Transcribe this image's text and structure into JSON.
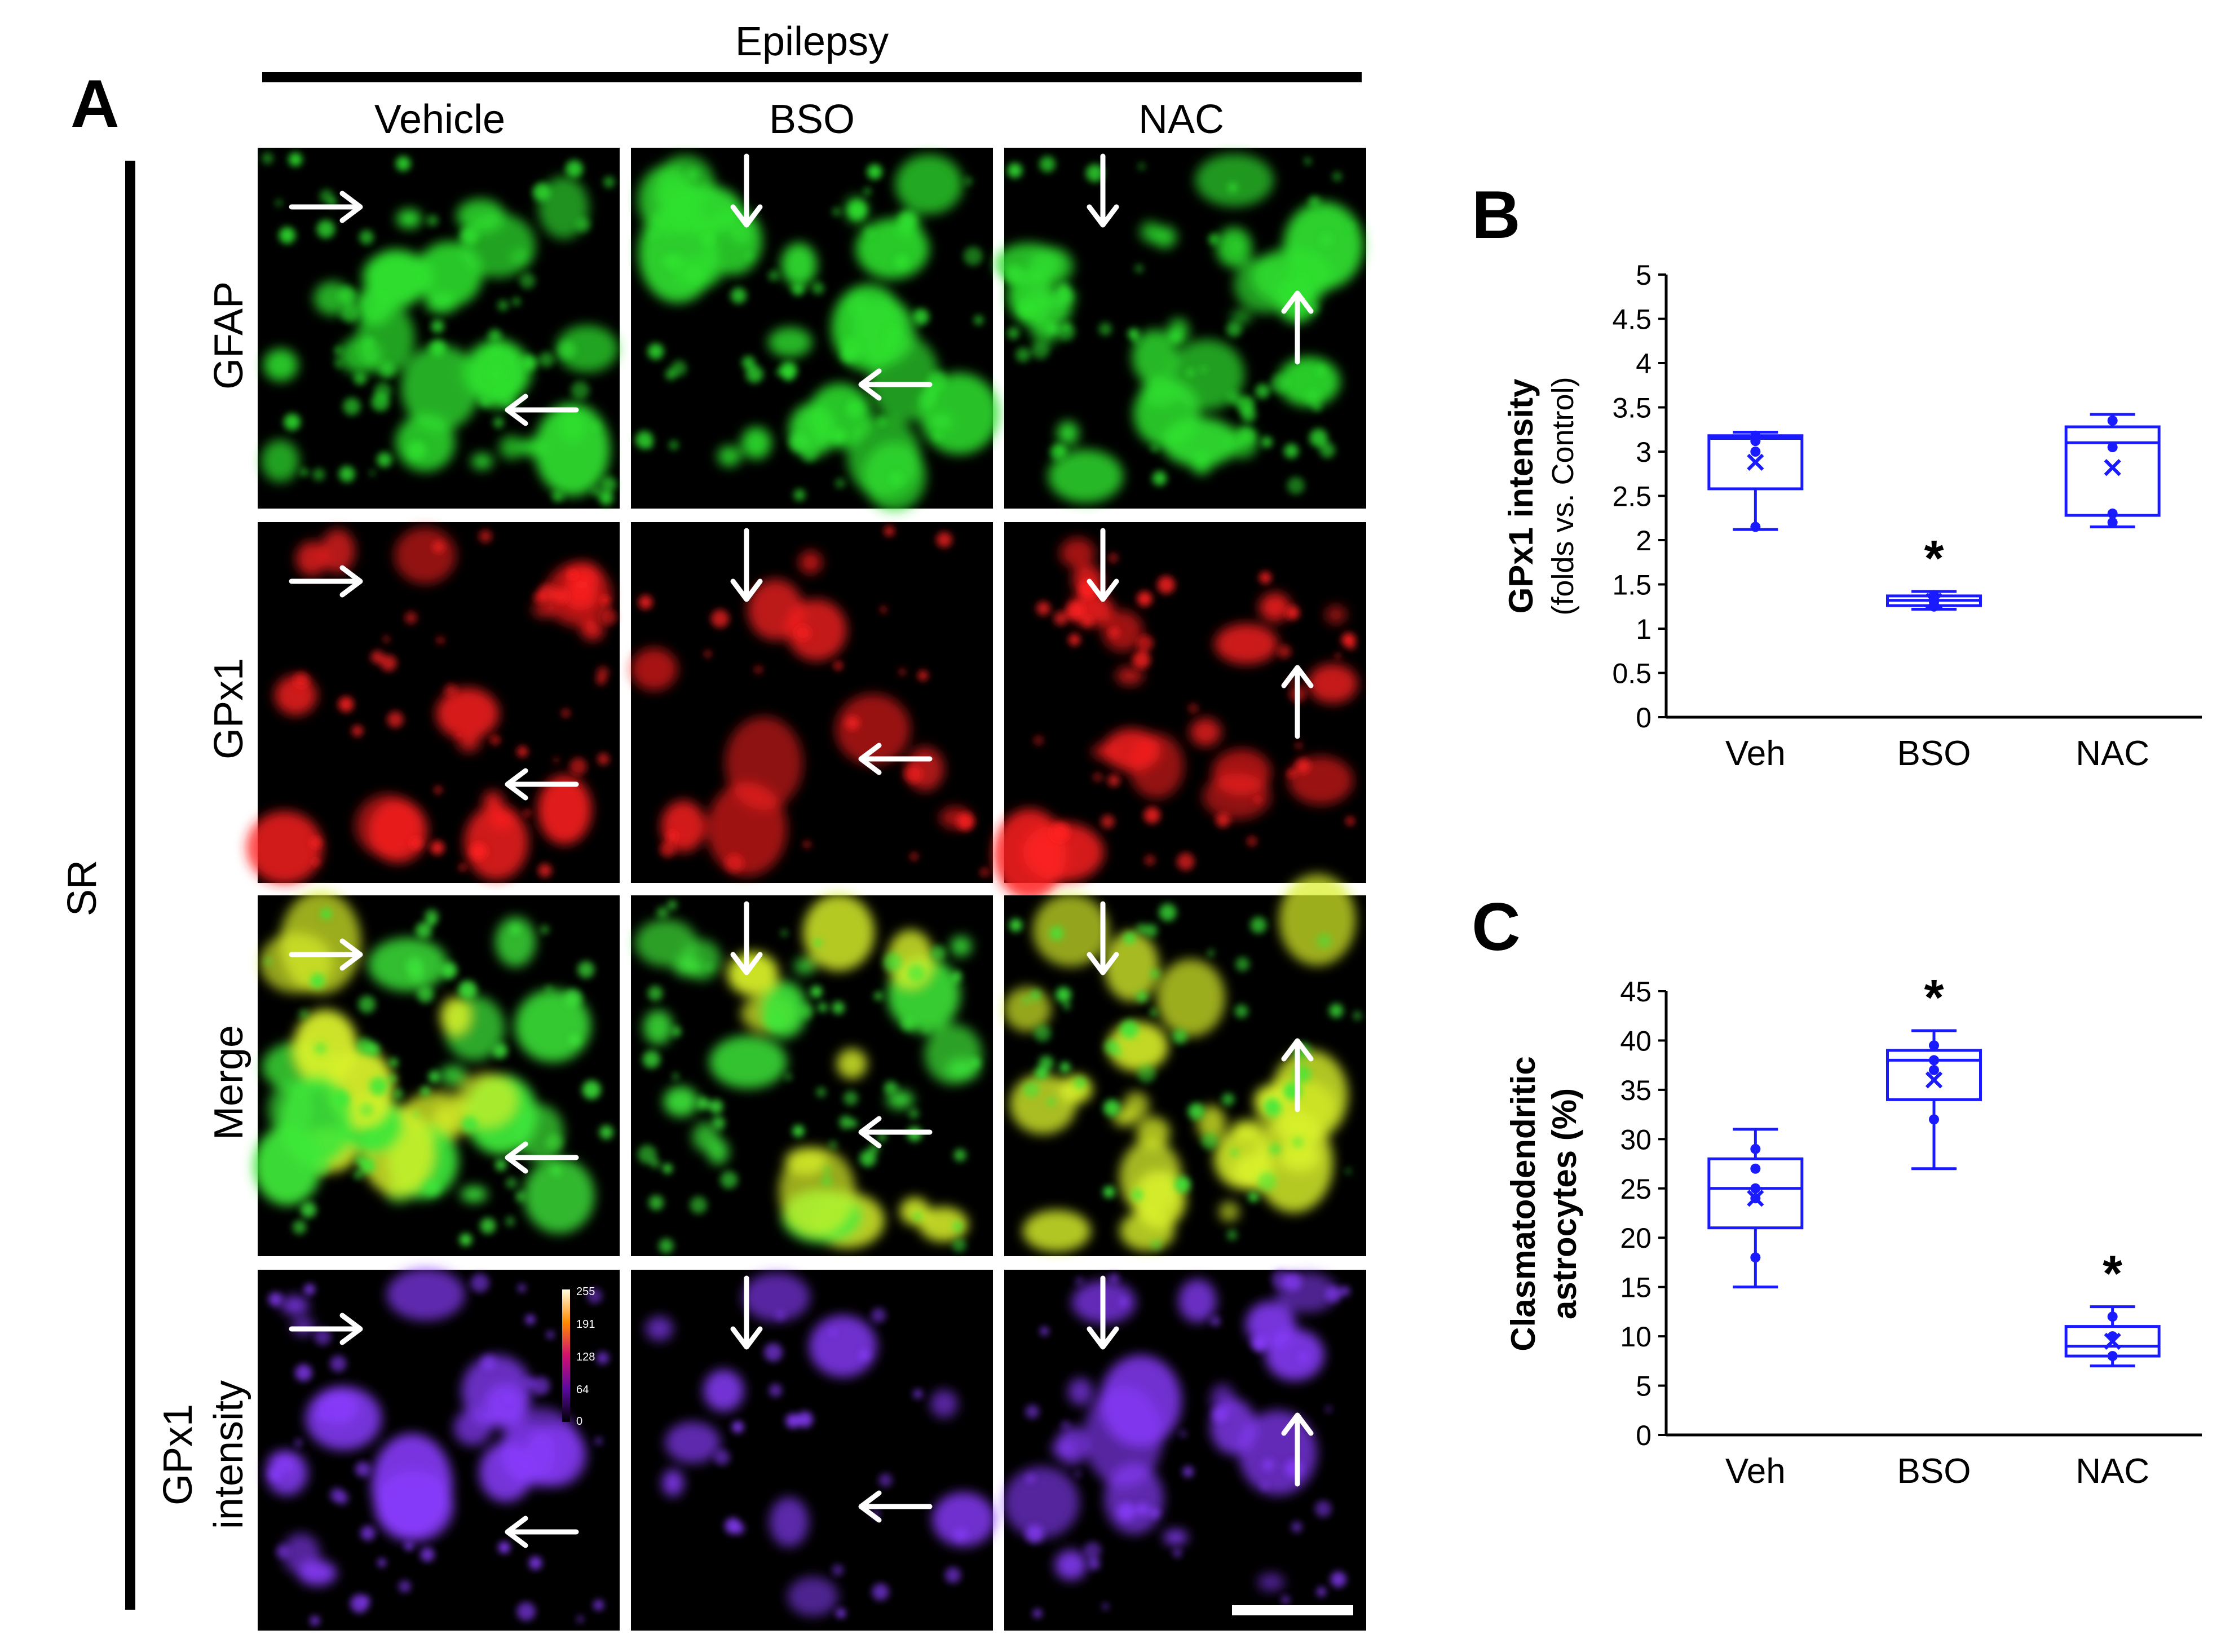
{
  "panel_labels": {
    "a": "A",
    "b": "B",
    "c": "C"
  },
  "panel_a": {
    "group_title": "Epilepsy",
    "region_label": "SR",
    "columns": [
      "Vehicle",
      "BSO",
      "NAC"
    ],
    "rows": [
      {
        "line1": "GFAP",
        "line2": ""
      },
      {
        "line1": "GPx1",
        "line2": ""
      },
      {
        "line1": "Merge",
        "line2": ""
      },
      {
        "line1": "GPx1",
        "line2": "intensity"
      }
    ],
    "colorbar_ticks": [
      "255",
      "191",
      "128",
      "64",
      "0"
    ],
    "channel_colors": {
      "gfap": "#2fe12f",
      "gpx1": "#ff2020",
      "merge_green": "#3ee83a",
      "merge_yellow": "#d8f02a",
      "intensity": "#8a3cff"
    }
  },
  "chart_data": [
    {
      "id": "B",
      "type": "box",
      "title": "",
      "ylabel": "GPx1 intensity",
      "ylabel_sub": "(folds vs. Control)",
      "xlabel": "",
      "ylim": [
        0,
        5
      ],
      "yticks": [
        "0",
        "0.5",
        "1",
        "1.5",
        "2",
        "2.5",
        "3",
        "3.5",
        "4",
        "4.5",
        "5"
      ],
      "categories": [
        "Veh",
        "BSO",
        "NAC"
      ],
      "color": "#1a1aff",
      "boxes": [
        {
          "min": 2.12,
          "q1": 2.58,
          "median": 3.15,
          "q3": 3.18,
          "max": 3.22,
          "mean": 2.88,
          "points": [
            2.15,
            3.0,
            3.12,
            3.18
          ],
          "annotation": ""
        },
        {
          "min": 1.22,
          "q1": 1.26,
          "median": 1.32,
          "q3": 1.37,
          "max": 1.42,
          "mean": 1.31,
          "points": [
            1.25,
            1.3,
            1.35,
            1.38
          ],
          "annotation": "*"
        },
        {
          "min": 2.15,
          "q1": 2.28,
          "median": 3.1,
          "q3": 3.28,
          "max": 3.42,
          "mean": 2.82,
          "points": [
            2.2,
            2.3,
            3.05,
            3.35
          ],
          "annotation": ""
        }
      ]
    },
    {
      "id": "C",
      "type": "box",
      "title": "",
      "ylabel": "Clasmatodendritic",
      "ylabel_sub": "astrocytes (%)",
      "xlabel": "",
      "ylim": [
        0,
        45
      ],
      "yticks": [
        "0",
        "5",
        "10",
        "15",
        "20",
        "25",
        "30",
        "35",
        "40",
        "45"
      ],
      "categories": [
        "Veh",
        "BSO",
        "NAC"
      ],
      "color": "#1a1aff",
      "boxes": [
        {
          "min": 15,
          "q1": 21,
          "median": 25,
          "q3": 28,
          "max": 31,
          "mean": 24,
          "points": [
            18,
            24,
            25,
            27,
            29
          ],
          "annotation": ""
        },
        {
          "min": 27,
          "q1": 34,
          "median": 38,
          "q3": 39,
          "max": 41,
          "mean": 36,
          "points": [
            32,
            37,
            38,
            39.5
          ],
          "annotation": "*"
        },
        {
          "min": 7,
          "q1": 8,
          "median": 9,
          "q3": 11,
          "max": 13,
          "mean": 9.5,
          "points": [
            8,
            10,
            12
          ],
          "annotation": "*"
        }
      ]
    }
  ]
}
